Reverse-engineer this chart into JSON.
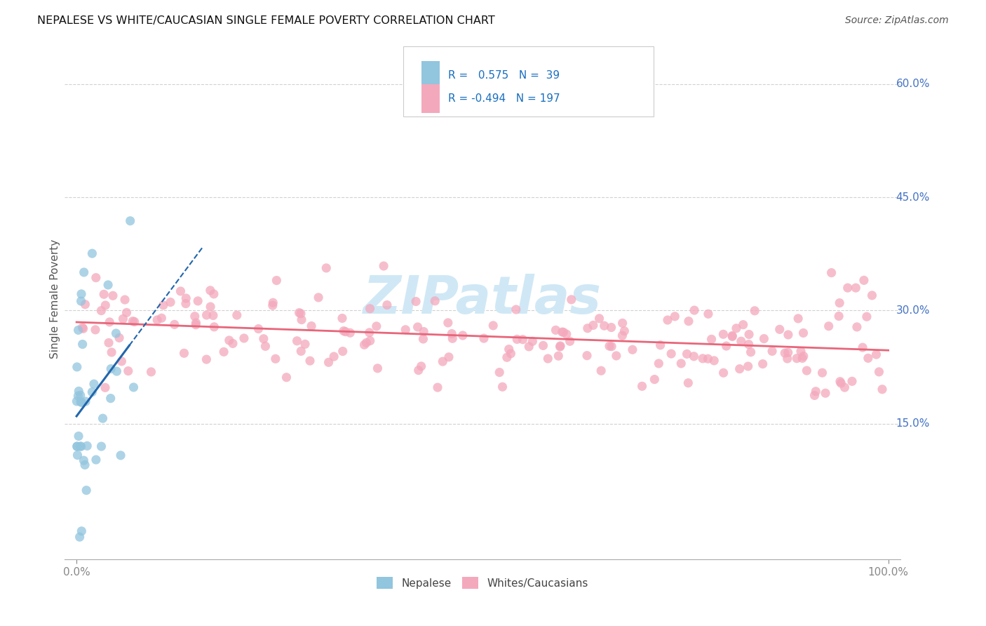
{
  "title": "NEPALESE VS WHITE/CAUCASIAN SINGLE FEMALE POVERTY CORRELATION CHART",
  "source": "Source: ZipAtlas.com",
  "ylabel": "Single Female Poverty",
  "ytick_labels": [
    "15.0%",
    "30.0%",
    "45.0%",
    "60.0%"
  ],
  "ytick_values": [
    0.15,
    0.3,
    0.45,
    0.6
  ],
  "nepalese_R": 0.575,
  "nepalese_N": 39,
  "white_R": -0.494,
  "white_N": 197,
  "nepalese_color": "#92c5de",
  "white_color": "#f4a8bc",
  "nepalese_line_color": "#2166ac",
  "white_line_color": "#e8667a",
  "background_color": "#ffffff",
  "watermark": "ZIPatlas",
  "watermark_color": "#d0e8f5",
  "legend_color": "#1a6fbf",
  "title_fontsize": 11.5,
  "source_fontsize": 10,
  "ylabel_fontsize": 11,
  "axis_label_color": "#444444",
  "grid_color": "#cccccc",
  "right_label_color": "#4472c4"
}
